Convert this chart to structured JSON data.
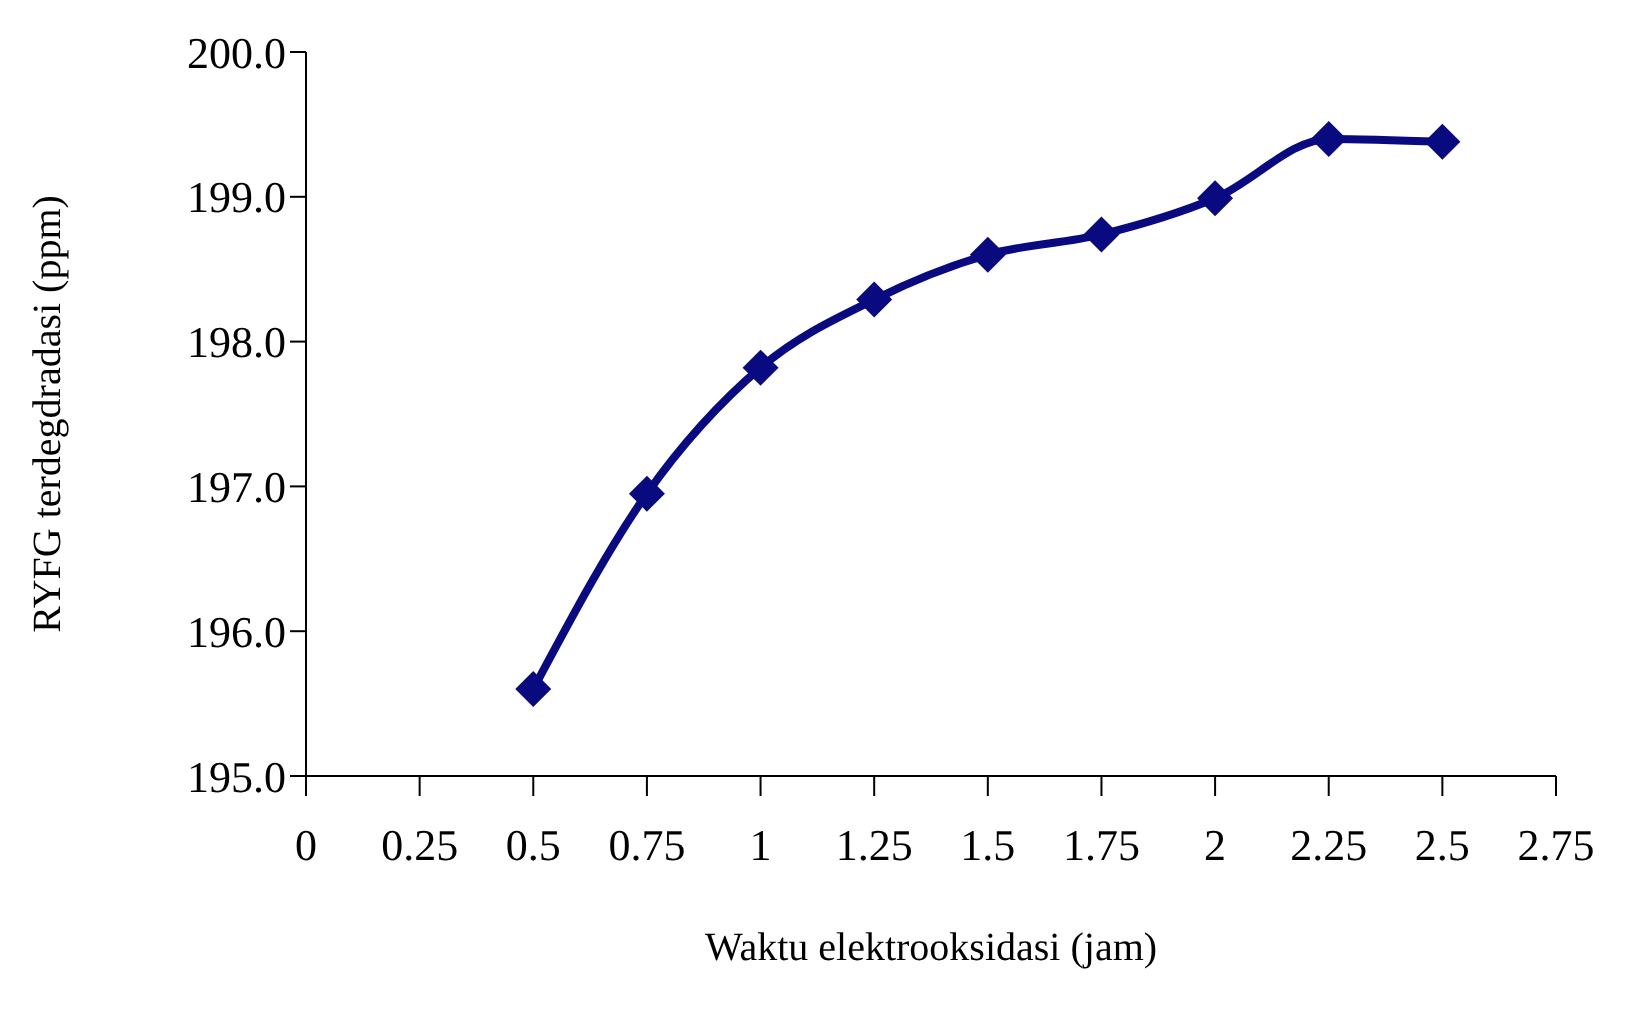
{
  "chart_data": {
    "type": "line",
    "xlabel": "Waktu elektrooksidasi (jam)",
    "ylabel": "RYFG  terdegdradasi (ppm)",
    "x": [
      0.5,
      0.75,
      1,
      1.25,
      1.5,
      1.75,
      2,
      2.25,
      2.5
    ],
    "series": [
      {
        "color": "#0a0a80",
        "values": [
          195.6,
          196.95,
          197.82,
          198.29,
          198.6,
          198.74,
          198.99,
          199.4,
          199.38
        ]
      }
    ],
    "xlim": [
      0,
      2.75
    ],
    "xticks": [
      0,
      0.25,
      0.5,
      0.75,
      1,
      1.25,
      1.5,
      1.75,
      2,
      2.25,
      2.5,
      2.75
    ],
    "ylim": [
      195,
      200
    ],
    "yticks": [
      {
        "value": 195,
        "label": "195.0"
      },
      {
        "value": 196,
        "label": "196.0"
      },
      {
        "value": 197,
        "label": "197.0"
      },
      {
        "value": 198,
        "label": "198.0"
      },
      {
        "value": 199,
        "label": "199.0"
      },
      {
        "value": 200,
        "label": "200.0"
      }
    ],
    "grid": false,
    "legend": false,
    "marker": "diamond",
    "line_style": "solid"
  }
}
